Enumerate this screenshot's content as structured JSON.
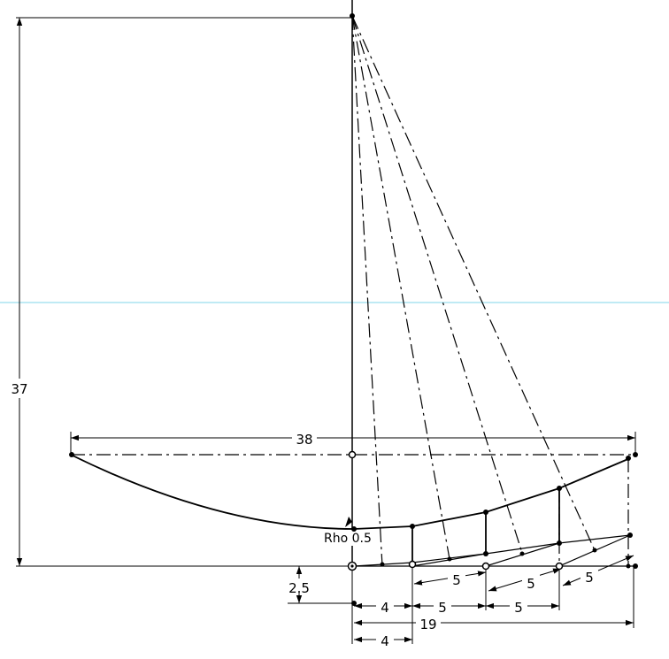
{
  "colors": {
    "line": "#000000",
    "background": "#ffffff",
    "horizon_line": "#7fd6e8"
  },
  "dimensions": {
    "height_37": "37",
    "width_38": "38",
    "offset_2_5": "2.5",
    "seg_4_top": "4",
    "seg_5_a": "5",
    "seg_5_b": "5",
    "total_19": "19",
    "seg_4_bottom": "4",
    "slant_5_a": "5",
    "slant_5_b": "5",
    "slant_5_c": "5"
  },
  "labels": {
    "rho": "Rho 0.5"
  }
}
